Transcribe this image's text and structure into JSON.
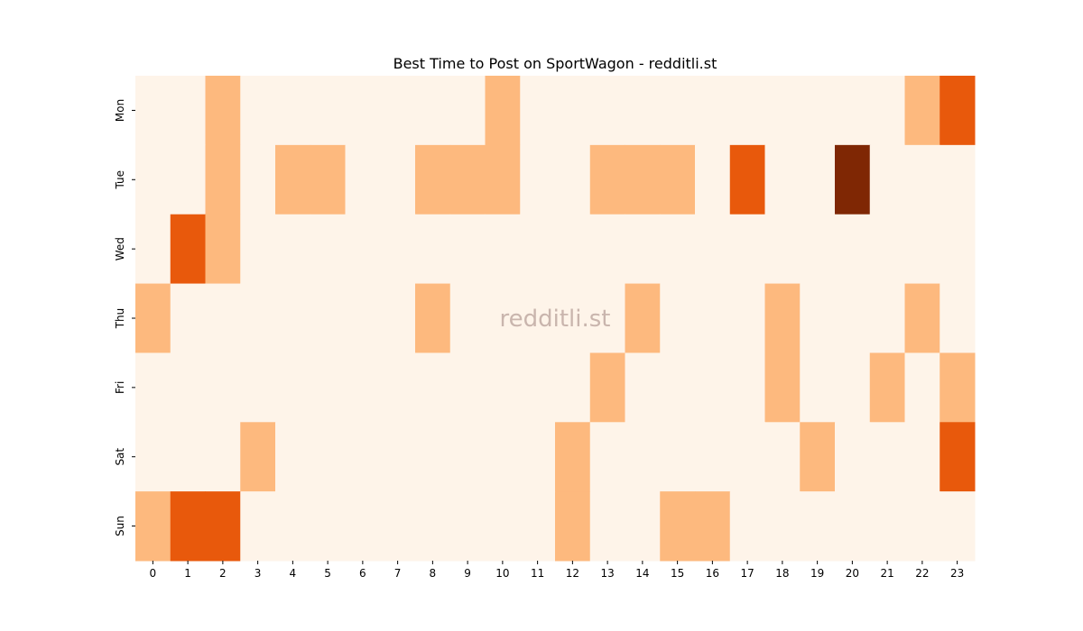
{
  "chart_data": {
    "type": "heatmap",
    "title": "Best Time to Post on SportWagon - redditli.st",
    "watermark": "redditli.st",
    "xlabel": "",
    "ylabel": "",
    "x_labels": [
      "0",
      "1",
      "2",
      "3",
      "4",
      "5",
      "6",
      "7",
      "8",
      "9",
      "10",
      "11",
      "12",
      "13",
      "14",
      "15",
      "16",
      "17",
      "18",
      "19",
      "20",
      "21",
      "22",
      "23"
    ],
    "y_labels": [
      "Mon",
      "Tue",
      "Wed",
      "Thu",
      "Fri",
      "Sat",
      "Sun"
    ],
    "colormap": [
      "#fef4e9",
      "#fdb97e",
      "#e8590c",
      "#7f2704"
    ],
    "values": [
      [
        0,
        0,
        1,
        0,
        0,
        0,
        0,
        0,
        0,
        0,
        1,
        0,
        0,
        0,
        0,
        0,
        0,
        0,
        0,
        0,
        0,
        0,
        1,
        2
      ],
      [
        0,
        0,
        1,
        0,
        1,
        1,
        0,
        0,
        1,
        1,
        1,
        0,
        0,
        1,
        1,
        1,
        0,
        2,
        0,
        0,
        3,
        0,
        0,
        0
      ],
      [
        0,
        2,
        1,
        0,
        0,
        0,
        0,
        0,
        0,
        0,
        0,
        0,
        0,
        0,
        0,
        0,
        0,
        0,
        0,
        0,
        0,
        0,
        0,
        0
      ],
      [
        1,
        0,
        0,
        0,
        0,
        0,
        0,
        0,
        1,
        0,
        0,
        0,
        0,
        0,
        1,
        0,
        0,
        0,
        1,
        0,
        0,
        0,
        1,
        0
      ],
      [
        0,
        0,
        0,
        0,
        0,
        0,
        0,
        0,
        0,
        0,
        0,
        0,
        0,
        1,
        0,
        0,
        0,
        0,
        1,
        0,
        0,
        1,
        0,
        1
      ],
      [
        0,
        0,
        0,
        1,
        0,
        0,
        0,
        0,
        0,
        0,
        0,
        0,
        1,
        0,
        0,
        0,
        0,
        0,
        0,
        1,
        0,
        0,
        0,
        2
      ],
      [
        1,
        2,
        2,
        0,
        0,
        0,
        0,
        0,
        0,
        0,
        0,
        0,
        1,
        0,
        0,
        1,
        1,
        0,
        0,
        0,
        0,
        0,
        0,
        0
      ]
    ]
  }
}
